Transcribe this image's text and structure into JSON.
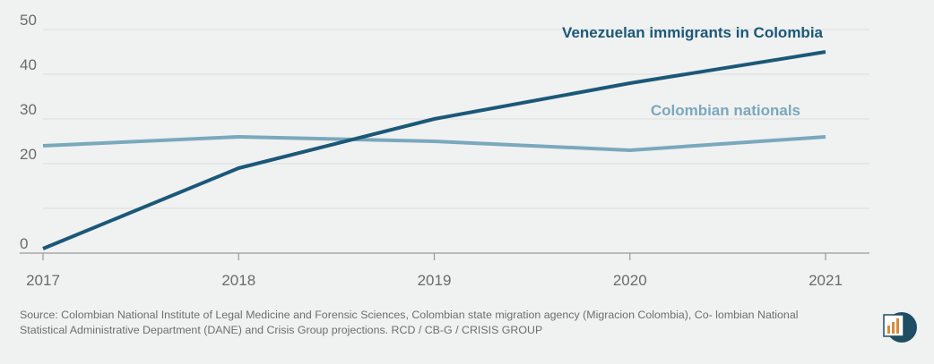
{
  "chart_data": {
    "type": "line",
    "x": [
      "2017",
      "2018",
      "2019",
      "2020",
      "2021"
    ],
    "ylim": [
      0,
      50
    ],
    "yticks": [
      0,
      10,
      20,
      30,
      40,
      50
    ],
    "ytick_labels": [
      "0",
      "",
      "20",
      "30",
      "40",
      "50"
    ],
    "grid": true,
    "series": [
      {
        "name": "Venezuelan immigrants in Colombia",
        "values": [
          1,
          19,
          30,
          38,
          45
        ],
        "color": "#1b5878"
      },
      {
        "name": "Colombian nationals",
        "values": [
          24,
          26,
          25,
          23,
          26
        ],
        "color": "#7aa8bd"
      }
    ]
  },
  "source_text": "Source: Colombian National Institute of Legal Medicine and Forensic Sciences, Colombian state migration agency (Migracion Colombia), Co- lombian National Statistical Administrative Department (DANE) and Crisis Group projections. RCD / CB-G / CRISIS GROUP",
  "logo_icon": "crisis-group-logo-icon"
}
